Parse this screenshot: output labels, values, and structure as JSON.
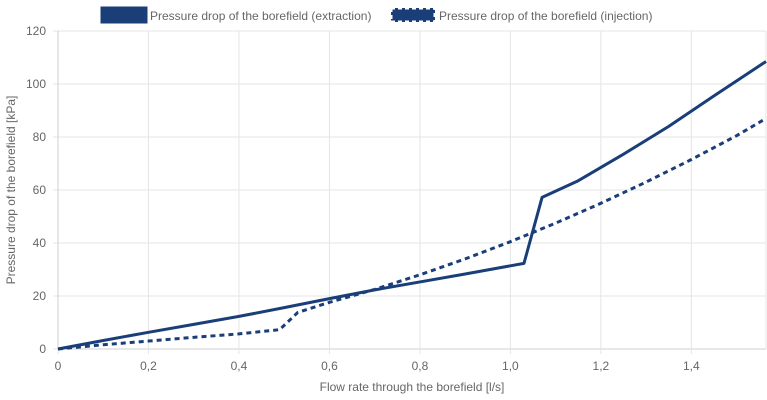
{
  "chart_data": {
    "type": "line",
    "xlabel": "Flow rate through the borefield [l/s]",
    "ylabel": "Pressure drop of the borefield [kPa]",
    "xlim": [
      0,
      1.565
    ],
    "ylim": [
      0,
      120
    ],
    "x_ticks": [
      0,
      0.2,
      0.4,
      0.6,
      0.8,
      1.0,
      1.2,
      1.4
    ],
    "x_tick_labels": [
      "0",
      "0,2",
      "0,4",
      "0,6",
      "0,8",
      "1,0",
      "1,2",
      "1,4"
    ],
    "y_ticks": [
      0,
      20,
      40,
      60,
      80,
      100,
      120
    ],
    "y_tick_labels": [
      "0",
      "20",
      "40",
      "60",
      "80",
      "100",
      "120"
    ],
    "grid": true,
    "legend_position": "top",
    "series": [
      {
        "name": "Pressure drop of the borefield (extraction)",
        "color": "#1a3e78",
        "style": "solid",
        "x": [
          0,
          0.1,
          0.2,
          0.3,
          0.4,
          0.5,
          0.6,
          0.7,
          0.8,
          0.9,
          1.0,
          1.03,
          1.07,
          1.15,
          1.25,
          1.35,
          1.45,
          1.565
        ],
        "y": [
          0,
          3.2,
          6.3,
          9.3,
          12.3,
          15.6,
          19.0,
          22.3,
          25.3,
          28.3,
          31.4,
          32.3,
          57.2,
          63.5,
          73.5,
          84.0,
          95.5,
          108.5
        ]
      },
      {
        "name": "Pressure drop of the borefield (injection)",
        "color": "#1a3e78",
        "style": "dashed",
        "x": [
          0,
          0.1,
          0.2,
          0.3,
          0.4,
          0.49,
          0.53,
          0.6,
          0.7,
          0.8,
          0.9,
          1.0,
          1.1,
          1.2,
          1.3,
          1.4,
          1.5,
          1.565
        ],
        "y": [
          0,
          1.6,
          3.0,
          4.4,
          5.7,
          7.3,
          13.8,
          17.6,
          22.5,
          28.0,
          34.0,
          40.5,
          47.5,
          55.0,
          63.0,
          71.5,
          80.5,
          87.0
        ]
      }
    ]
  }
}
